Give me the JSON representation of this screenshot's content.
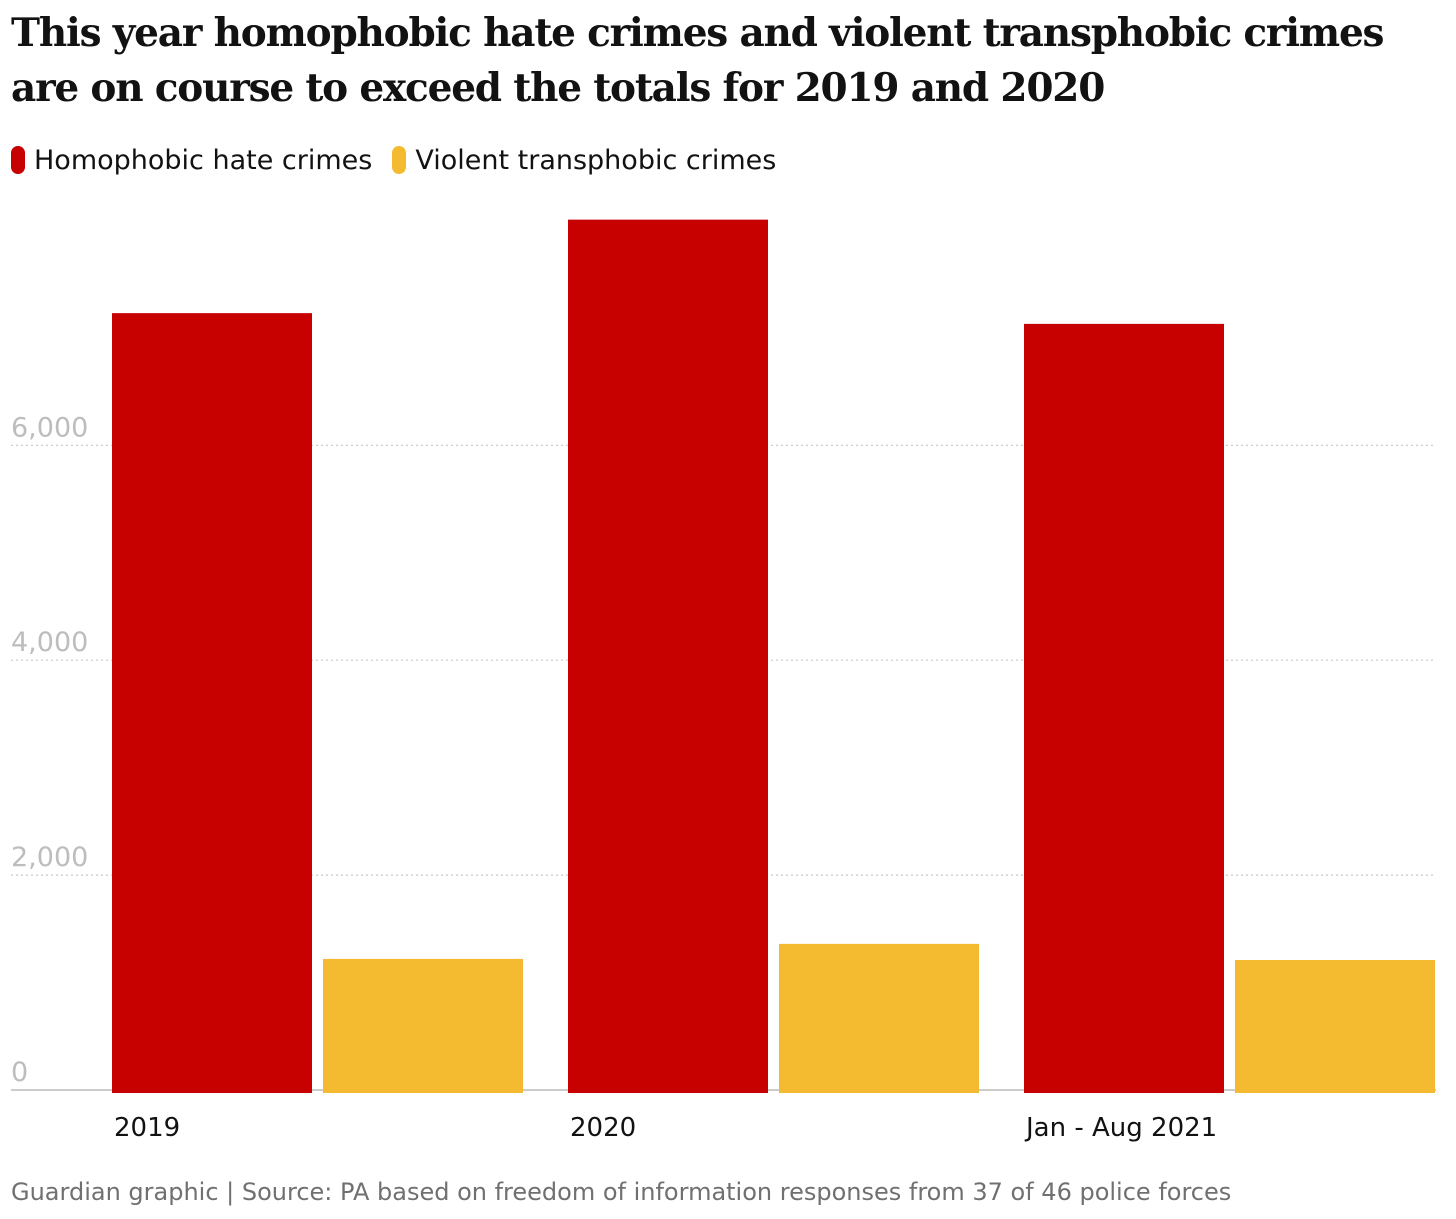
{
  "chart_data": {
    "type": "bar",
    "title": "This year homophobic hate crimes and violent transphobic crimes are on course to exceed the totals for 2019 and 2020",
    "categories": [
      "2019",
      "2020",
      "Jan - Aug 2021"
    ],
    "series": [
      {
        "name": "Homophobic hate crimes",
        "color": "#c70000",
        "values": [
          7230,
          8100,
          7130
        ]
      },
      {
        "name": "Violent transphobic crimes",
        "color": "#f5bb30",
        "values": [
          1220,
          1360,
          1210
        ]
      }
    ],
    "yticks": [
      0,
      2000,
      4000,
      6000
    ],
    "ytick_labels": [
      "0",
      "2,000",
      "4,000",
      "6,000"
    ],
    "ylim": [
      0,
      8200
    ],
    "grid": true,
    "legend_position": "top-left",
    "source": "Guardian graphic | Source: PA based on freedom of information responses from 37 of 46 police forces"
  }
}
